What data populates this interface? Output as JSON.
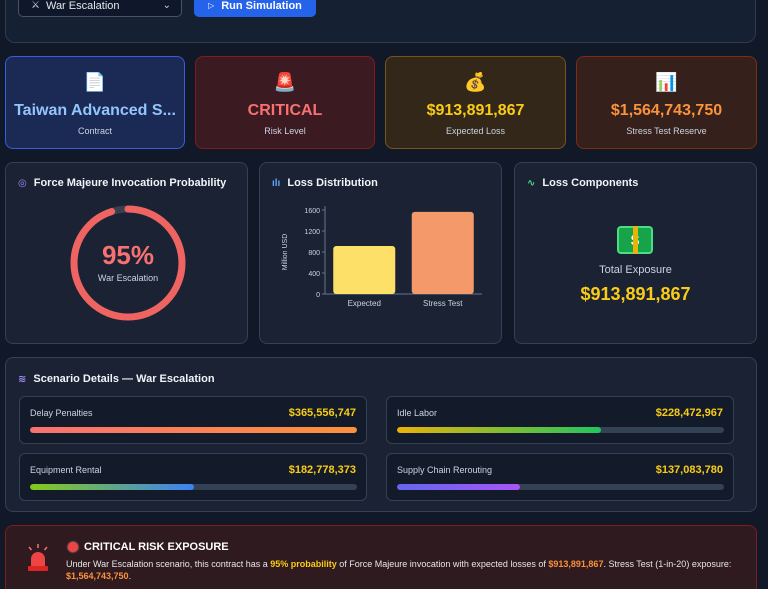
{
  "toolbar": {
    "scenario_select": {
      "icon": "crossed-swords-icon",
      "icon_glyph": "⚔",
      "value": "War Escalation"
    },
    "run_button": {
      "icon": "play-icon",
      "label": "Run Simulation"
    }
  },
  "kpis": [
    {
      "icon": "document-icon",
      "glyph": "📄",
      "value": "Taiwan Advanced S...",
      "label": "Contract"
    },
    {
      "icon": "siren-icon",
      "glyph": "🚨",
      "value": "CRITICAL",
      "label": "Risk Level"
    },
    {
      "icon": "money-bag-icon",
      "glyph": "💰",
      "value": "$913,891,867",
      "label": "Expected Loss"
    },
    {
      "icon": "bar-chart-icon",
      "glyph": "📊",
      "value": "$1,564,743,750",
      "label": "Stress Test Reserve"
    }
  ],
  "probability_card": {
    "title": "Force Majeure Invocation Probability",
    "icon": "target-icon",
    "percent_label": "95%",
    "probability": 0.95,
    "subtitle": "War Escalation"
  },
  "distribution_card": {
    "title": "Loss Distribution",
    "icon": "bar-chart-icon"
  },
  "chart_data": {
    "type": "bar",
    "categories": [
      "Expected",
      "Stress Test"
    ],
    "values": [
      913.9,
      1564.7
    ],
    "colors": [
      "#fde068",
      "#f4996a"
    ],
    "xlabel": "",
    "ylabel": "Million USD",
    "ylim": [
      0,
      1600
    ],
    "yticks": [
      0,
      400,
      800,
      1200,
      1600
    ],
    "grid": false
  },
  "components_card": {
    "title": "Loss Components",
    "icon": "activity-icon",
    "center_icon": "banknote-icon",
    "total_label": "Total Exposure",
    "total_value": "$913,891,867"
  },
  "scenario_details": {
    "title": "Scenario Details — War Escalation",
    "icon": "layers-icon",
    "items": [
      {
        "label": "Delay Penalties",
        "value": "$365,556,747",
        "fraction": 1.0,
        "gradient": [
          "#f87171",
          "#fb923c"
        ]
      },
      {
        "label": "Idle Labor",
        "value": "$228,472,967",
        "fraction": 0.625,
        "gradient": [
          "#eab308",
          "#22c55e"
        ]
      },
      {
        "label": "Equipment Rental",
        "value": "$182,778,373",
        "fraction": 0.5,
        "gradient": [
          "#84cc16",
          "#3b82f6"
        ]
      },
      {
        "label": "Supply Chain Rerouting",
        "value": "$137,083,780",
        "fraction": 0.375,
        "gradient": [
          "#6366f1",
          "#a855f7"
        ]
      }
    ]
  },
  "alert": {
    "icon": "siren-icon",
    "title": "CRITICAL RISK EXPOSURE",
    "text_1": "Under War Escalation scenario, this contract has a ",
    "highlight_1": "95% probability",
    "text_2": " of Force Majeure invocation with expected losses of ",
    "highlight_2": "$913,891,867",
    "text_3": ". Stress Test (1-in-20) exposure: ",
    "highlight_3": "$1,564,743,750",
    "text_4": "."
  }
}
